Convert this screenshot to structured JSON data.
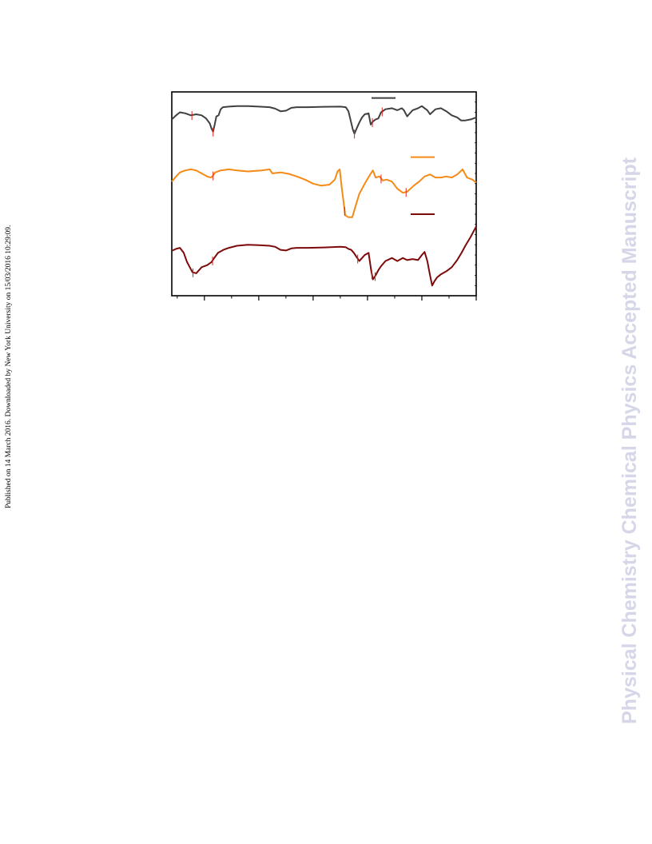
{
  "side_note": "Published on 14 March 2016. Downloaded by New York University on 15/03/2016 10:29:09.",
  "watermark": "Physical Chemistry Chemical Physics Accepted Manuscript",
  "chart_data": {
    "type": "line",
    "title": "",
    "xlabel": "",
    "ylabel": "",
    "xlim": [
      0,
      56
    ],
    "ylim": [
      0,
      100
    ],
    "grid": false,
    "legend": "top-right",
    "x_major_ticks": [
      6,
      16,
      26,
      36,
      46,
      56
    ],
    "x_minor_ticks": [
      1,
      11,
      21,
      31,
      41,
      51
    ],
    "series": [
      {
        "color": "#404040",
        "legend_y": 97,
        "x": [
          0,
          0.8,
          1.5,
          2.5,
          3.5,
          4.5,
          5.5,
          6.3,
          7.0,
          7.3,
          7.6,
          7.9,
          8.2,
          8.6,
          9.0,
          9.4,
          10.5,
          12,
          14,
          16,
          18,
          19,
          20,
          21,
          22,
          23,
          25,
          28,
          31,
          32,
          32.5,
          33.0,
          33.3,
          33.6,
          34.0,
          34.5,
          35.0,
          35.5,
          36.2,
          36.6,
          37.0,
          37.5,
          38.0,
          38.5,
          39.3,
          40.5,
          41.5,
          42.3,
          42.7,
          43.3,
          44.3,
          45.3,
          46.0,
          46.5,
          47.0,
          47.5,
          48.5,
          49.5,
          50.5,
          51.5,
          52.5,
          53.2,
          54.0,
          55.0,
          56.0
        ],
        "y": [
          86.5,
          88.5,
          90,
          89.5,
          88.5,
          89,
          88.5,
          87,
          84.5,
          82,
          80.5,
          84,
          88,
          88.5,
          91.5,
          92.5,
          92.8,
          93,
          93,
          92.8,
          92.5,
          91.8,
          90.5,
          90.8,
          92.2,
          92.5,
          92.5,
          92.7,
          92.8,
          92.5,
          90.5,
          85,
          81.5,
          79.5,
          82,
          85,
          87.5,
          89,
          89.5,
          84,
          85.5,
          86.5,
          87,
          90,
          91.5,
          92,
          91,
          92,
          91,
          88,
          91,
          92,
          93,
          92,
          91,
          89,
          91.5,
          92,
          90.5,
          88.5,
          87.5,
          86,
          86,
          86.5,
          87.5
        ],
        "ticks_x": [
          3.7,
          7.6,
          33.6,
          36.9,
          38.7
        ]
      },
      {
        "color": "#f58a16",
        "legend_y": 68,
        "x": [
          0,
          0.8,
          1.5,
          2.5,
          3.5,
          4.5,
          5.5,
          6.5,
          7.2,
          7.6,
          8.0,
          9.0,
          10.5,
          12,
          14,
          16.5,
          18,
          18.5,
          19,
          20,
          21.5,
          23,
          24.5,
          26,
          27.5,
          29,
          30.0,
          30.5,
          30.9,
          31.3,
          31.6,
          31.9,
          32.5,
          33.2,
          33.8,
          34.5,
          35.5,
          36.5,
          37.0,
          37.5,
          38.2,
          38.8,
          39.5,
          40.5,
          41.5,
          42.5,
          43.3,
          44.5,
          45.5,
          46.5,
          47.5,
          48.5,
          49.5,
          50.5,
          51.5,
          52.5,
          53.5,
          54.3,
          55.3,
          56.0
        ],
        "y": [
          56,
          58.5,
          60.5,
          61.5,
          62,
          61.5,
          60,
          58.5,
          58,
          59,
          60.5,
          61.5,
          62,
          61.5,
          61,
          61.5,
          62,
          60,
          60.2,
          60.5,
          59.8,
          58.5,
          57,
          55,
          54,
          54.5,
          57,
          61,
          62,
          52,
          46,
          39.5,
          38.5,
          38.5,
          44,
          50,
          55,
          59.5,
          61.5,
          58,
          58.5,
          56.5,
          57,
          56,
          52.5,
          50.5,
          51,
          54,
          56,
          58.5,
          59.5,
          58,
          58,
          58.5,
          58,
          59.5,
          62,
          58,
          57,
          55.5
        ],
        "ticks_x": [
          7.6,
          31.8,
          38.5,
          43.1
        ]
      },
      {
        "color": "#7c0a0a",
        "legend_y": 40,
        "x": [
          0,
          0.8,
          1.5,
          2.2,
          2.8,
          3.3,
          3.8,
          4.5,
          5.5,
          6.5,
          7.3,
          7.8,
          8.5,
          9.5,
          10.5,
          12,
          14,
          16,
          18,
          19,
          20,
          21,
          22,
          23,
          25,
          28,
          31,
          32,
          32.5,
          33.0,
          33.5,
          34.0,
          34.5,
          35.0,
          35.5,
          36.2,
          36.7,
          37.0,
          37.5,
          38.0,
          38.5,
          39.3,
          40.5,
          41.5,
          42.5,
          43.3,
          44.3,
          45.3,
          46.0,
          46.5,
          47.0,
          47.5,
          47.9,
          48.3,
          48.8,
          49.5,
          50.5,
          51.5,
          52.5,
          53.3,
          54.0,
          55.0,
          56.0
        ],
        "y": [
          22,
          23,
          23.5,
          21,
          16.5,
          14,
          11.5,
          11,
          14,
          15,
          16.5,
          18.5,
          21,
          22.5,
          23.5,
          24.5,
          25,
          24.8,
          24.5,
          24,
          22.5,
          22.2,
          23.2,
          23.5,
          23.5,
          23.7,
          24,
          23.8,
          23,
          22.5,
          21,
          19,
          17,
          18.5,
          20,
          21,
          12,
          8,
          10,
          12.5,
          14.5,
          17,
          18.5,
          17,
          18.5,
          17.5,
          18,
          17.5,
          20,
          21.5,
          17,
          10,
          5,
          7,
          9,
          10.5,
          12,
          14,
          17.5,
          21,
          24.5,
          29,
          34
        ],
        "ticks_x": [
          3.9,
          7.5,
          34.2,
          36.8,
          37.4
        ]
      }
    ]
  },
  "colors": {
    "frame": "#000000",
    "tick_marker": "#e02020",
    "background": "#ffffff"
  }
}
